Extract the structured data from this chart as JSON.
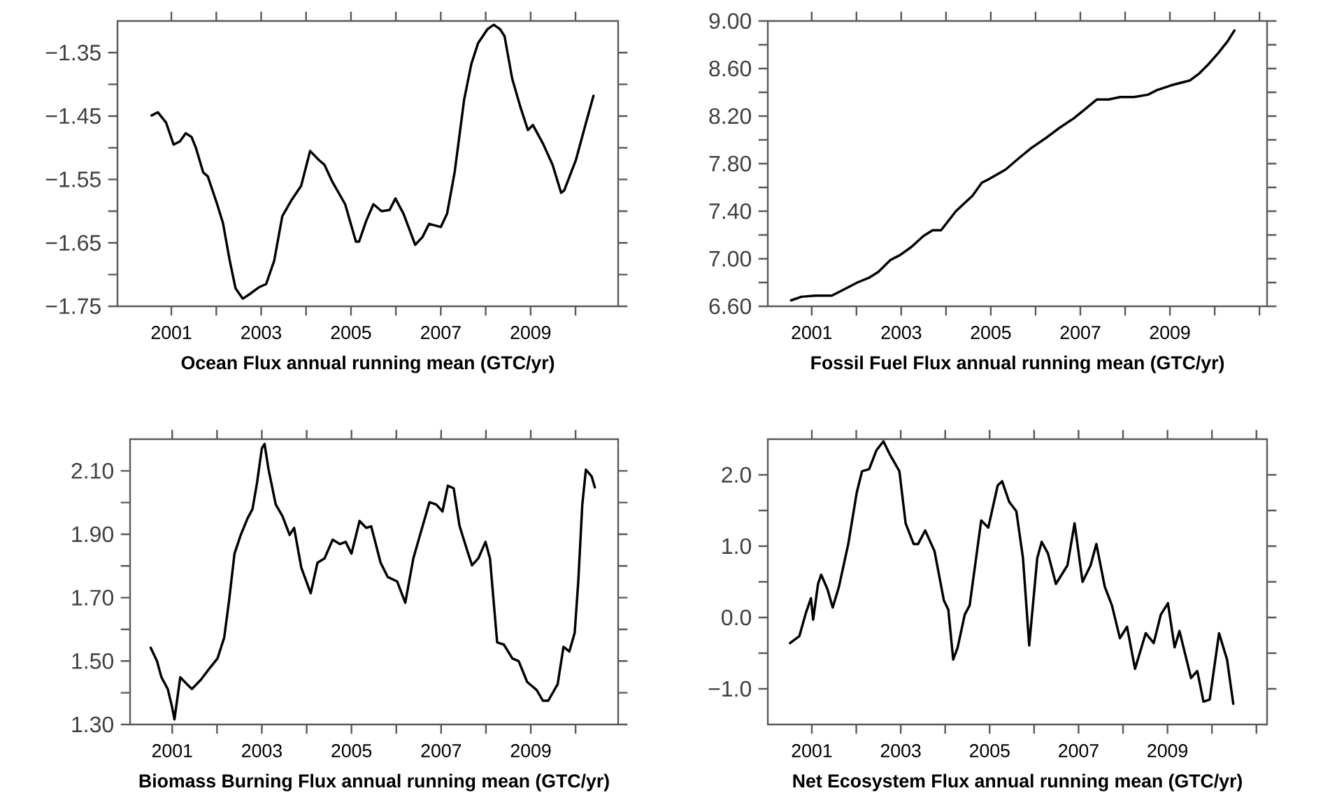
{
  "chart_data": [
    {
      "type": "line",
      "xlabel": "Ocean Flux annual running mean (GTC/yr)",
      "color": "#000000",
      "xlim": [
        1999.8,
        2010.95
      ],
      "ylim": [
        -1.75,
        -1.3
      ],
      "xticks": [
        {
          "value": 2001,
          "label": "2001"
        },
        {
          "value": 2002,
          "label": null
        },
        {
          "value": 2003,
          "label": "2003"
        },
        {
          "value": 2004,
          "label": null
        },
        {
          "value": 2005,
          "label": "2005"
        },
        {
          "value": 2006,
          "label": null
        },
        {
          "value": 2007,
          "label": "2007"
        },
        {
          "value": 2008,
          "label": null
        },
        {
          "value": 2009,
          "label": "2009"
        },
        {
          "value": 2010,
          "label": null
        }
      ],
      "yticks": [
        {
          "value": -1.75,
          "label": "−1.75"
        },
        {
          "value": -1.7,
          "label": null
        },
        {
          "value": -1.65,
          "label": "−1.65"
        },
        {
          "value": -1.6,
          "label": null
        },
        {
          "value": -1.55,
          "label": "−1.55"
        },
        {
          "value": -1.5,
          "label": null
        },
        {
          "value": -1.45,
          "label": "−1.45"
        },
        {
          "value": -1.4,
          "label": null
        },
        {
          "value": -1.35,
          "label": "−1.35"
        }
      ],
      "x": [
        2000.56,
        2000.7,
        2000.88,
        2001.05,
        2001.19,
        2001.32,
        2001.45,
        2001.55,
        2001.71,
        2001.81,
        2002.02,
        2002.15,
        2002.3,
        2002.43,
        2002.59,
        2002.74,
        2002.95,
        2003.11,
        2003.29,
        2003.47,
        2003.68,
        2003.89,
        2004.09,
        2004.28,
        2004.41,
        2004.58,
        2004.87,
        2005.11,
        2005.18,
        2005.34,
        2005.5,
        2005.68,
        2005.86,
        2005.99,
        2006.17,
        2006.43,
        2006.59,
        2006.74,
        2007.0,
        2007.14,
        2007.31,
        2007.52,
        2007.68,
        2007.83,
        2008.04,
        2008.18,
        2008.32,
        2008.42,
        2008.59,
        2008.77,
        2008.94,
        2009.05,
        2009.28,
        2009.49,
        2009.68,
        2009.75,
        2010.01,
        2010.22,
        2010.4
      ],
      "values": [
        -1.449,
        -1.444,
        -1.46,
        -1.495,
        -1.49,
        -1.477,
        -1.483,
        -1.501,
        -1.539,
        -1.545,
        -1.589,
        -1.619,
        -1.678,
        -1.722,
        -1.738,
        -1.731,
        -1.72,
        -1.715,
        -1.678,
        -1.608,
        -1.582,
        -1.56,
        -1.505,
        -1.519,
        -1.527,
        -1.553,
        -1.589,
        -1.648,
        -1.648,
        -1.615,
        -1.589,
        -1.6,
        -1.598,
        -1.58,
        -1.604,
        -1.653,
        -1.641,
        -1.62,
        -1.625,
        -1.604,
        -1.538,
        -1.424,
        -1.368,
        -1.335,
        -1.313,
        -1.306,
        -1.313,
        -1.324,
        -1.391,
        -1.435,
        -1.472,
        -1.464,
        -1.494,
        -1.527,
        -1.571,
        -1.567,
        -1.519,
        -1.464,
        -1.418
      ]
    },
    {
      "type": "line",
      "xlabel": "Fossil Fuel Flux annual running mean (GTC/yr)",
      "color": "#000000",
      "xlim": [
        2000.02,
        2011.17
      ],
      "ylim": [
        6.6,
        9.0
      ],
      "xticks": [
        {
          "value": 2001,
          "label": "2001"
        },
        {
          "value": 2002,
          "label": null
        },
        {
          "value": 2003,
          "label": "2003"
        },
        {
          "value": 2004,
          "label": null
        },
        {
          "value": 2005,
          "label": "2005"
        },
        {
          "value": 2006,
          "label": null
        },
        {
          "value": 2007,
          "label": "2007"
        },
        {
          "value": 2008,
          "label": null
        },
        {
          "value": 2009,
          "label": "2009"
        },
        {
          "value": 2010,
          "label": null
        },
        {
          "value": 2011,
          "label": null
        }
      ],
      "yticks": [
        {
          "value": 6.6,
          "label": "6.60"
        },
        {
          "value": 6.8,
          "label": null
        },
        {
          "value": 7.0,
          "label": "7.00"
        },
        {
          "value": 7.2,
          "label": null
        },
        {
          "value": 7.4,
          "label": "7.40"
        },
        {
          "value": 7.6,
          "label": null
        },
        {
          "value": 7.8,
          "label": "7.80"
        },
        {
          "value": 8.0,
          "label": null
        },
        {
          "value": 8.2,
          "label": "8.20"
        },
        {
          "value": 8.4,
          "label": null
        },
        {
          "value": 8.6,
          "label": "8.60"
        },
        {
          "value": 8.8,
          "label": null
        },
        {
          "value": 9.0,
          "label": "9.00"
        }
      ],
      "x": [
        2000.54,
        2000.77,
        2001.08,
        2001.45,
        2001.71,
        2002.02,
        2002.28,
        2002.49,
        2002.76,
        2002.97,
        2003.23,
        2003.49,
        2003.7,
        2003.89,
        2004.22,
        2004.59,
        2004.8,
        2004.96,
        2005.33,
        2005.64,
        2005.9,
        2006.21,
        2006.53,
        2006.85,
        2007.11,
        2007.37,
        2007.63,
        2007.89,
        2008.2,
        2008.51,
        2008.72,
        2009.04,
        2009.45,
        2009.66,
        2009.87,
        2010.08,
        2010.29,
        2010.44
      ],
      "values": [
        6.65,
        6.68,
        6.69,
        6.69,
        6.74,
        6.8,
        6.84,
        6.89,
        6.99,
        7.03,
        7.1,
        7.19,
        7.24,
        7.24,
        7.4,
        7.53,
        7.64,
        7.67,
        7.75,
        7.85,
        7.93,
        8.01,
        8.1,
        8.18,
        8.26,
        8.34,
        8.34,
        8.36,
        8.36,
        8.38,
        8.42,
        8.46,
        8.5,
        8.56,
        8.64,
        8.73,
        8.83,
        8.92
      ]
    },
    {
      "type": "line",
      "xlabel": "Biomass Burning Flux annual running mean (GTC/yr)",
      "color": "#000000",
      "xlim": [
        2000.06,
        2010.95
      ],
      "ylim": [
        1.3,
        2.2
      ],
      "xticks": [
        {
          "value": 2001,
          "label": "2001"
        },
        {
          "value": 2002,
          "label": null
        },
        {
          "value": 2003,
          "label": "2003"
        },
        {
          "value": 2004,
          "label": null
        },
        {
          "value": 2005,
          "label": "2005"
        },
        {
          "value": 2006,
          "label": null
        },
        {
          "value": 2007,
          "label": "2007"
        },
        {
          "value": 2008,
          "label": null
        },
        {
          "value": 2009,
          "label": "2009"
        },
        {
          "value": 2010,
          "label": null
        }
      ],
      "yticks": [
        {
          "value": 1.3,
          "label": "1.30"
        },
        {
          "value": 1.4,
          "label": null
        },
        {
          "value": 1.5,
          "label": "1.50"
        },
        {
          "value": 1.6,
          "label": null
        },
        {
          "value": 1.7,
          "label": "1.70"
        },
        {
          "value": 1.8,
          "label": null
        },
        {
          "value": 1.9,
          "label": "1.90"
        },
        {
          "value": 2.0,
          "label": null
        },
        {
          "value": 2.1,
          "label": "2.10"
        }
      ],
      "x": [
        2000.52,
        2000.66,
        2000.76,
        2000.9,
        2001.0,
        2001.05,
        2001.18,
        2001.33,
        2001.44,
        2001.64,
        2001.8,
        2002.01,
        2002.16,
        2002.27,
        2002.39,
        2002.53,
        2002.68,
        2002.79,
        2002.89,
        2003.0,
        2003.06,
        2003.15,
        2003.31,
        2003.46,
        2003.62,
        2003.72,
        2003.88,
        2004.09,
        2004.24,
        2004.4,
        2004.58,
        2004.74,
        2004.87,
        2005.0,
        2005.18,
        2005.33,
        2005.44,
        2005.65,
        2005.81,
        2006.02,
        2006.2,
        2006.38,
        2006.53,
        2006.74,
        2006.89,
        2007.03,
        2007.15,
        2007.28,
        2007.41,
        2007.57,
        2007.69,
        2007.83,
        2007.99,
        2008.09,
        2008.25,
        2008.4,
        2008.59,
        2008.73,
        2008.92,
        2009.13,
        2009.27,
        2009.39,
        2009.6,
        2009.73,
        2009.86,
        2009.98,
        2010.06,
        2010.15,
        2010.23,
        2010.36,
        2010.43
      ],
      "values": [
        1.542,
        1.5,
        1.449,
        1.412,
        1.353,
        1.316,
        1.449,
        1.427,
        1.412,
        1.441,
        1.471,
        1.508,
        1.574,
        1.692,
        1.839,
        1.898,
        1.95,
        1.979,
        2.06,
        2.171,
        2.185,
        2.104,
        1.994,
        1.957,
        1.898,
        1.92,
        1.795,
        1.714,
        1.81,
        1.824,
        1.883,
        1.869,
        1.876,
        1.839,
        1.942,
        1.92,
        1.925,
        1.81,
        1.765,
        1.751,
        1.684,
        1.824,
        1.898,
        2.001,
        1.994,
        1.972,
        2.053,
        2.045,
        1.927,
        1.854,
        1.802,
        1.824,
        1.876,
        1.824,
        1.559,
        1.552,
        1.508,
        1.5,
        1.434,
        1.409,
        1.375,
        1.375,
        1.427,
        1.545,
        1.53,
        1.589,
        1.751,
        1.994,
        2.104,
        2.082,
        2.048
      ]
    },
    {
      "type": "line",
      "xlabel": "Net Ecosystem Flux annual running mean (GTC/yr)",
      "color": "#000000",
      "xlim": [
        2000.01,
        2011.24
      ],
      "ylim": [
        -1.5,
        2.5
      ],
      "xticks": [
        {
          "value": 2001,
          "label": "2001"
        },
        {
          "value": 2002,
          "label": null
        },
        {
          "value": 2003,
          "label": "2003"
        },
        {
          "value": 2004,
          "label": null
        },
        {
          "value": 2005,
          "label": "2005"
        },
        {
          "value": 2006,
          "label": null
        },
        {
          "value": 2007,
          "label": "2007"
        },
        {
          "value": 2008,
          "label": null
        },
        {
          "value": 2009,
          "label": "2009"
        },
        {
          "value": 2010,
          "label": null
        },
        {
          "value": 2011,
          "label": null
        }
      ],
      "yticks": [
        {
          "value": -1.0,
          "label": "−1.0"
        },
        {
          "value": -0.5,
          "label": null
        },
        {
          "value": 0.0,
          "label": "0.0"
        },
        {
          "value": 0.5,
          "label": null
        },
        {
          "value": 1.0,
          "label": "1.0"
        },
        {
          "value": 1.5,
          "label": null
        },
        {
          "value": 2.0,
          "label": "2.0"
        }
      ],
      "x": [
        2000.51,
        2000.72,
        2000.87,
        2000.98,
        2001.03,
        2001.14,
        2001.21,
        2001.35,
        2001.47,
        2001.61,
        2001.82,
        2002.01,
        2002.13,
        2002.29,
        2002.45,
        2002.61,
        2002.76,
        2002.97,
        2003.11,
        2003.29,
        2003.39,
        2003.55,
        2003.76,
        2003.97,
        2004.07,
        2004.18,
        2004.28,
        2004.44,
        2004.55,
        2004.81,
        2004.97,
        2005.18,
        2005.28,
        2005.44,
        2005.6,
        2005.75,
        2005.89,
        2006.07,
        2006.17,
        2006.31,
        2006.49,
        2006.75,
        2006.91,
        2007.09,
        2007.27,
        2007.4,
        2007.59,
        2007.75,
        2007.93,
        2008.09,
        2008.27,
        2008.51,
        2008.69,
        2008.85,
        2009.01,
        2009.16,
        2009.27,
        2009.53,
        2009.67,
        2009.81,
        2009.95,
        2010.16,
        2010.34,
        2010.48
      ],
      "values": [
        -0.36,
        -0.26,
        0.07,
        0.27,
        -0.03,
        0.47,
        0.6,
        0.4,
        0.14,
        0.43,
        1.03,
        1.75,
        2.05,
        2.08,
        2.34,
        2.47,
        2.28,
        2.05,
        1.32,
        1.03,
        1.03,
        1.22,
        0.93,
        0.24,
        0.11,
        -0.59,
        -0.42,
        0.04,
        0.17,
        1.36,
        1.26,
        1.85,
        1.91,
        1.62,
        1.49,
        0.83,
        -0.39,
        0.83,
        1.06,
        0.9,
        0.47,
        0.73,
        1.32,
        0.5,
        0.73,
        1.03,
        0.43,
        0.17,
        -0.29,
        -0.13,
        -0.72,
        -0.22,
        -0.36,
        0.04,
        0.2,
        -0.42,
        -0.19,
        -0.85,
        -0.75,
        -1.18,
        -1.15,
        -0.22,
        -0.59,
        -1.21
      ]
    }
  ]
}
